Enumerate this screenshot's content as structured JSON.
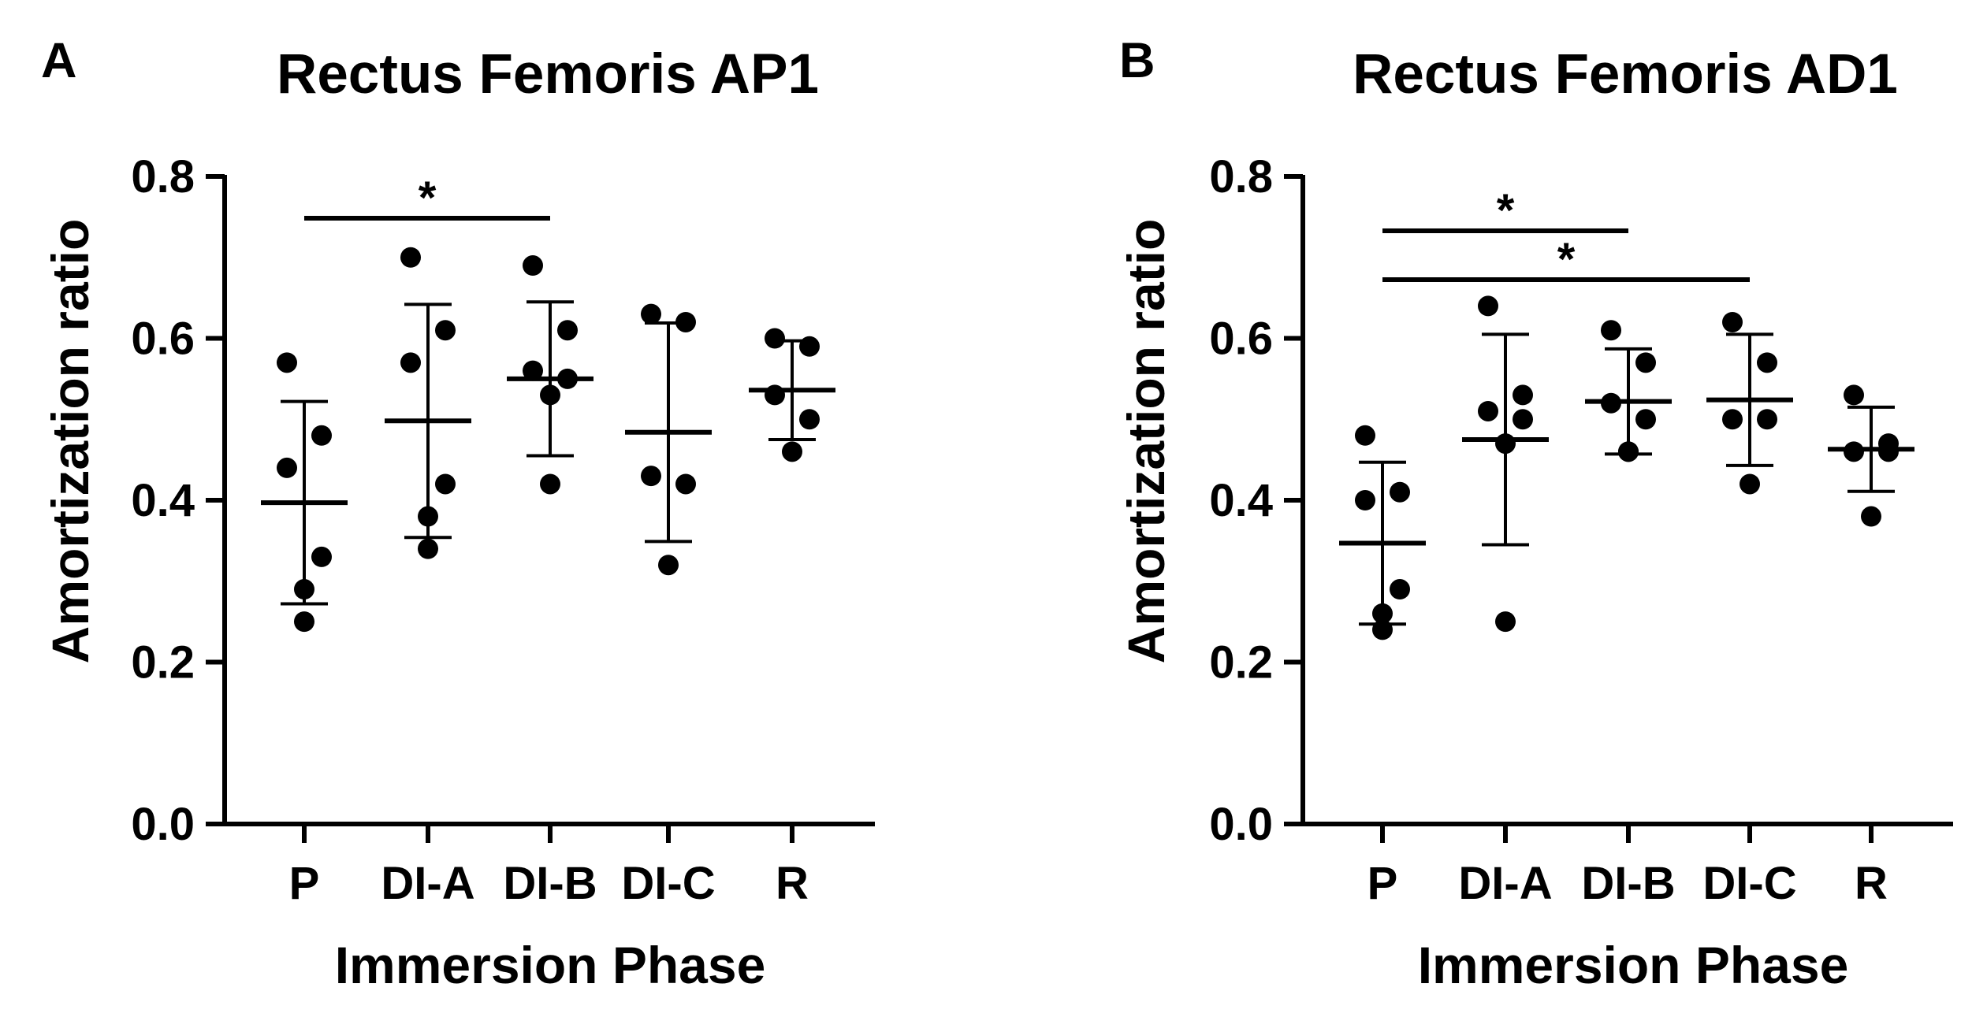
{
  "chart_data": [
    {
      "type": "scatter",
      "panel_label": "A",
      "title": "Rectus Femoris AP1",
      "xlabel": "Immersion Phase",
      "ylabel": "Amortization ratio",
      "ylim": [
        0,
        0.8
      ],
      "yticks": [
        "0.0",
        "0.2",
        "0.4",
        "0.6",
        "0.8"
      ],
      "categories": [
        "P",
        "DI-A",
        "DI-B",
        "DI-C",
        "R"
      ],
      "series": [
        {
          "name": "P",
          "points": [
            0.57,
            0.48,
            0.44,
            0.33,
            0.29,
            0.25
          ],
          "mean": 0.397,
          "sd": 0.125
        },
        {
          "name": "DI-A",
          "points": [
            0.7,
            0.61,
            0.57,
            0.42,
            0.38,
            0.34
          ],
          "mean": 0.498,
          "sd": 0.144
        },
        {
          "name": "DI-B",
          "points": [
            0.69,
            0.61,
            0.56,
            0.55,
            0.53,
            0.42
          ],
          "mean": 0.55,
          "sd": 0.095
        },
        {
          "name": "DI-C",
          "points": [
            0.63,
            0.62,
            0.43,
            0.42,
            0.32
          ],
          "mean": 0.484,
          "sd": 0.135
        },
        {
          "name": "R",
          "points": [
            0.6,
            0.59,
            0.53,
            0.5,
            0.46
          ],
          "mean": 0.536,
          "sd": 0.061
        }
      ],
      "significance": [
        {
          "from": "P",
          "to": "DI-B",
          "label": "*"
        }
      ]
    },
    {
      "type": "scatter",
      "panel_label": "B",
      "title": "Rectus Femoris AD1",
      "xlabel": "Immersion Phase",
      "ylabel": "Amortization ratio",
      "ylim": [
        0,
        0.8
      ],
      "yticks": [
        "0.0",
        "0.2",
        "0.4",
        "0.6",
        "0.8"
      ],
      "categories": [
        "P",
        "DI-A",
        "DI-B",
        "DI-C",
        "R"
      ],
      "series": [
        {
          "name": "P",
          "points": [
            0.48,
            0.41,
            0.4,
            0.29,
            0.26,
            0.24
          ],
          "mean": 0.347,
          "sd": 0.1
        },
        {
          "name": "DI-A",
          "points": [
            0.64,
            0.53,
            0.51,
            0.5,
            0.47,
            0.25
          ],
          "mean": 0.475,
          "sd": 0.13
        },
        {
          "name": "DI-B",
          "points": [
            0.61,
            0.57,
            0.52,
            0.5,
            0.46,
            0.46
          ],
          "mean": 0.522,
          "sd": 0.065
        },
        {
          "name": "DI-C",
          "points": [
            0.62,
            0.57,
            0.5,
            0.5,
            0.42
          ],
          "mean": 0.524,
          "sd": 0.081
        },
        {
          "name": "R",
          "points": [
            0.53,
            0.47,
            0.46,
            0.46,
            0.38
          ],
          "mean": 0.463,
          "sd": 0.052
        }
      ],
      "significance": [
        {
          "from": "P",
          "to": "DI-B",
          "label": "*"
        },
        {
          "from": "P",
          "to": "DI-C",
          "label": "*"
        }
      ]
    }
  ]
}
